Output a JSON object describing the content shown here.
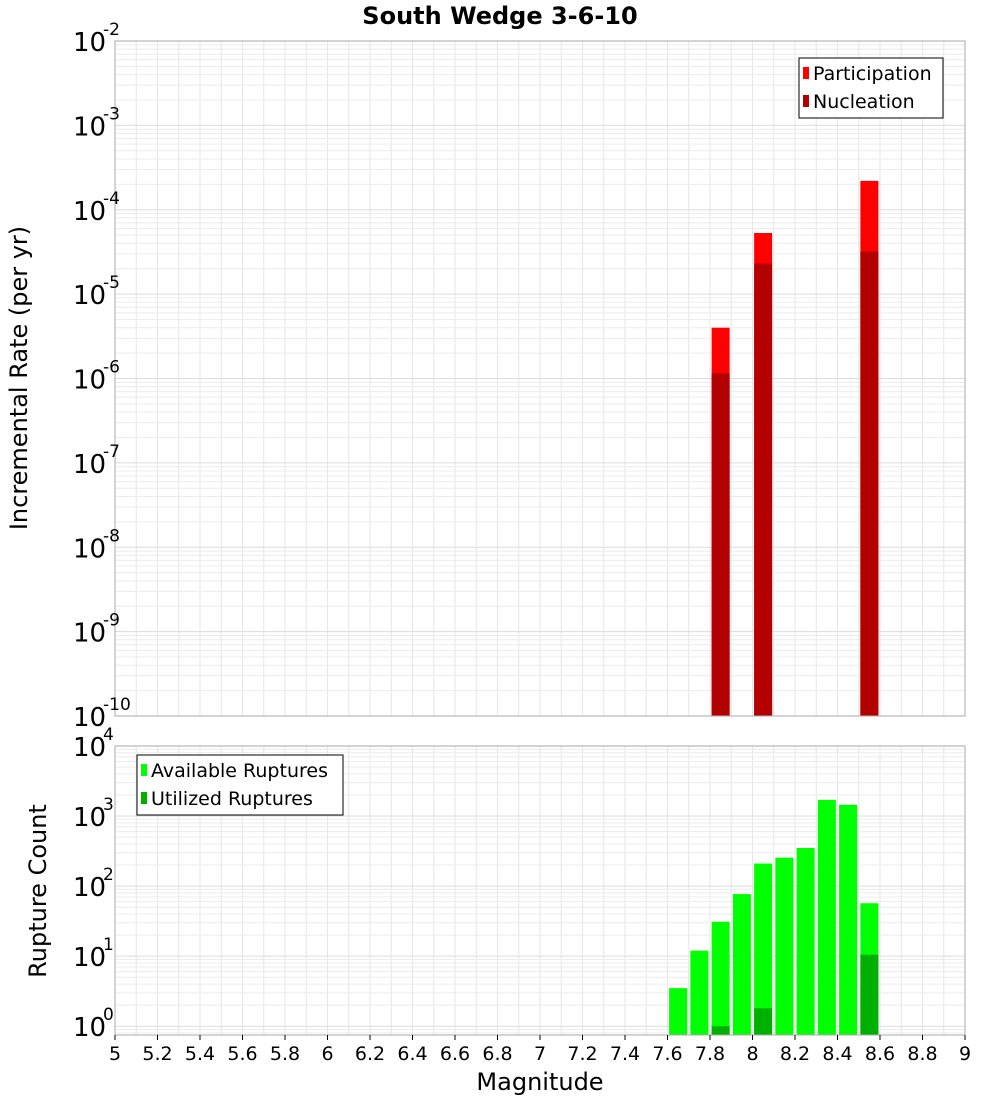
{
  "chart_data": [
    {
      "type": "bar",
      "title": "South Wedge 3-6-10",
      "ylabel": "Incremental Rate (per yr)",
      "xlabel": "",
      "xlim": [
        5,
        9
      ],
      "ylim": [
        1e-10,
        0.01
      ],
      "yscale": "log",
      "y_ticks": [
        {
          "base": "10",
          "exp": "-10",
          "value": 1e-10
        },
        {
          "base": "10",
          "exp": "-9",
          "value": 1e-09
        },
        {
          "base": "10",
          "exp": "-8",
          "value": 1e-08
        },
        {
          "base": "10",
          "exp": "-7",
          "value": 1e-07
        },
        {
          "base": "10",
          "exp": "-6",
          "value": 1e-06
        },
        {
          "base": "10",
          "exp": "-5",
          "value": 1e-05
        },
        {
          "base": "10",
          "exp": "-4",
          "value": 0.0001
        },
        {
          "base": "10",
          "exp": "-3",
          "value": 0.001
        },
        {
          "base": "10",
          "exp": "-2",
          "value": 0.01
        }
      ],
      "grid": true,
      "legend_position": "top-right",
      "series": [
        {
          "name": "Participation",
          "color": "#ff0000",
          "x": [
            7.85,
            8.05,
            8.55
          ],
          "values": [
            4e-06,
            5.3e-05,
            0.00022
          ]
        },
        {
          "name": "Nucleation",
          "color": "#b30000",
          "x": [
            7.85,
            8.05,
            8.55
          ],
          "values": [
            1.15e-06,
            2.3e-05,
            3.2e-05
          ]
        }
      ]
    },
    {
      "type": "bar",
      "title": "",
      "ylabel": "Rupture Count",
      "xlabel": "Magnitude",
      "xlim": [
        5,
        9
      ],
      "ylim": [
        0.75,
        10000
      ],
      "yscale": "log",
      "y_ticks": [
        {
          "base": "10",
          "exp": "0",
          "value": 1
        },
        {
          "base": "10",
          "exp": "1",
          "value": 10
        },
        {
          "base": "10",
          "exp": "2",
          "value": 100
        },
        {
          "base": "10",
          "exp": "3",
          "value": 1000
        },
        {
          "base": "10",
          "exp": "4",
          "value": 10000
        }
      ],
      "x_ticks": [
        "5",
        "5.2",
        "5.4",
        "5.6",
        "5.8",
        "6",
        "6.2",
        "6.4",
        "6.6",
        "6.8",
        "7",
        "7.2",
        "7.4",
        "7.6",
        "7.8",
        "8",
        "8.2",
        "8.4",
        "8.6",
        "8.8",
        "9"
      ],
      "grid": true,
      "legend_position": "top-left",
      "series": [
        {
          "name": "Available Ruptures",
          "color": "#00ff00",
          "x": [
            7.65,
            7.75,
            7.85,
            7.95,
            8.05,
            8.15,
            8.25,
            8.35,
            8.45,
            8.55
          ],
          "values": [
            3.5,
            12,
            31,
            77,
            210,
            255,
            350,
            1700,
            1450,
            57
          ]
        },
        {
          "name": "Utilized Ruptures",
          "color": "#00b000",
          "x": [
            7.85,
            8.05,
            8.55
          ],
          "values": [
            1,
            1.8,
            10.5
          ]
        }
      ]
    }
  ]
}
